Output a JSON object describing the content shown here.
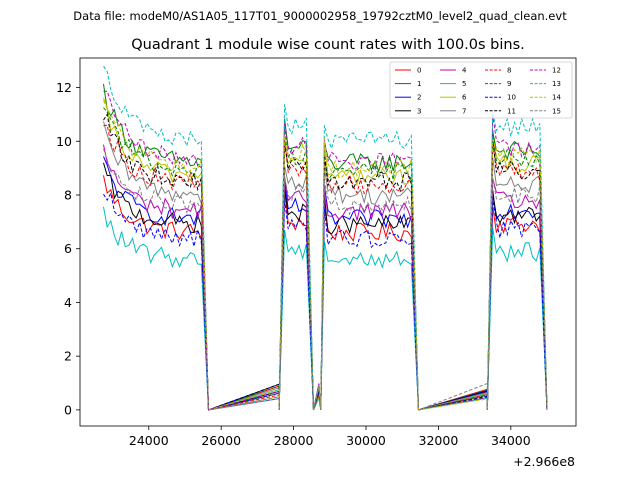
{
  "chart_data": {
    "type": "line",
    "suptitle": "Data file: modeM0/AS1A05_117T01_9000002958_19792cztM0_level2_quad_clean.evt",
    "title": "Quadrant 1 module wise count rates with 100.0s bins.",
    "xlabel": "",
    "ylabel": "",
    "x_offset_label": "+2.966e8",
    "xlim": [
      22100,
      35800
    ],
    "ylim": [
      -0.6,
      13.1
    ],
    "xticks": [
      24000,
      26000,
      28000,
      30000,
      32000,
      34000
    ],
    "xtick_labels": [
      "24000",
      "26000",
      "28000",
      "30000",
      "32000",
      "34000"
    ],
    "yticks": [
      0,
      2,
      4,
      6,
      8,
      10,
      12
    ],
    "ytick_labels": [
      "0",
      "2",
      "4",
      "6",
      "8",
      "10",
      "12"
    ],
    "legend_position": "top-right",
    "segments": [
      {
        "x_start": 22750,
        "x_end": 25450,
        "ramp_down_to": 25650
      },
      {
        "x_start": 27750,
        "x_end": 28400,
        "ramp_down_to": 28550
      },
      {
        "x_start": 28850,
        "x_end": 31250,
        "ramp_down_to": 31450
      },
      {
        "x_start": 33500,
        "x_end": 34850,
        "ramp_down_to": 35000
      }
    ],
    "gap_points": [
      25650,
      27600,
      28550,
      28750,
      31450,
      33350
    ],
    "series": [
      {
        "name": "0",
        "color": "#ff0000",
        "dash": "solid",
        "level": 6.6
      },
      {
        "name": "1",
        "color": "#008000",
        "dash": "solid",
        "level": 9.2
      },
      {
        "name": "2",
        "color": "#0000ff",
        "dash": "solid",
        "level": 7.1
      },
      {
        "name": "3",
        "color": "#000000",
        "dash": "solid",
        "level": 6.9
      },
      {
        "name": "4",
        "color": "#bf00bf",
        "dash": "solid",
        "level": 7.4
      },
      {
        "name": "5",
        "color": "#00bfbf",
        "dash": "solid",
        "level": 5.6
      },
      {
        "name": "6",
        "color": "#bfbf00",
        "dash": "solid",
        "level": 8.7
      },
      {
        "name": "7",
        "color": "#808080",
        "dash": "solid",
        "level": 8.0
      },
      {
        "name": "8",
        "color": "#ff0000",
        "dash": "dashed",
        "level": 8.4
      },
      {
        "name": "9",
        "color": "#008000",
        "dash": "dashed",
        "level": 8.9
      },
      {
        "name": "10",
        "color": "#0000ff",
        "dash": "dashed",
        "level": 6.4
      },
      {
        "name": "11",
        "color": "#000000",
        "dash": "dashed",
        "level": 8.5
      },
      {
        "name": "12",
        "color": "#bf00bf",
        "dash": "dashed",
        "level": 9.3
      },
      {
        "name": "13",
        "color": "#00bfbf",
        "dash": "dashed",
        "level": 10.0
      },
      {
        "name": "14",
        "color": "#bfbf00",
        "dash": "dashed",
        "level": 9.0
      },
      {
        "name": "15",
        "color": "#808080",
        "dash": "dashed",
        "level": 7.6
      }
    ]
  }
}
